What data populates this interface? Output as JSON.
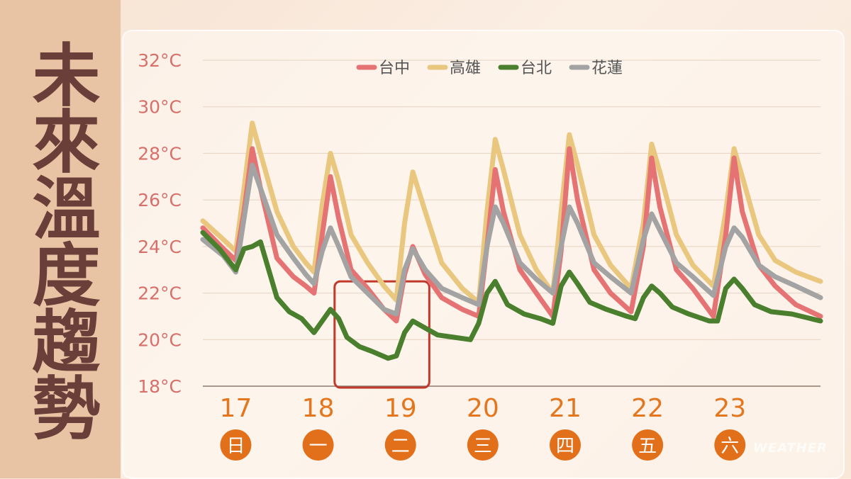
{
  "title": "未來溫度趨勢",
  "watermark": "WEATHER",
  "chart_data": {
    "type": "line",
    "title": "未來溫度趨勢",
    "ylim": [
      18,
      32
    ],
    "y_ticks": [
      "32°C",
      "30°C",
      "28°C",
      "26°C",
      "24°C",
      "22°C",
      "20°C",
      "18°C"
    ],
    "x_range": [
      16.6,
      24.1
    ],
    "x_unit": "day of month",
    "day_ticks": [
      {
        "day": "17",
        "weekday": "日"
      },
      {
        "day": "18",
        "weekday": "一"
      },
      {
        "day": "19",
        "weekday": "二"
      },
      {
        "day": "20",
        "weekday": "三"
      },
      {
        "day": "21",
        "weekday": "四"
      },
      {
        "day": "22",
        "weekday": "五"
      },
      {
        "day": "23",
        "weekday": "六"
      }
    ],
    "legend_position": "top",
    "highlight_box": {
      "x_from": 18.2,
      "x_to": 19.35,
      "y_from": 18,
      "y_to": 22.5,
      "color": "#c0392b"
    },
    "series": [
      {
        "name": "台中",
        "color": "#e57373",
        "points": [
          [
            16.6,
            24.8
          ],
          [
            16.85,
            23.9
          ],
          [
            17.0,
            23.4
          ],
          [
            17.1,
            25.5
          ],
          [
            17.2,
            28.2
          ],
          [
            17.3,
            26.5
          ],
          [
            17.5,
            23.5
          ],
          [
            17.7,
            22.7
          ],
          [
            17.85,
            22.3
          ],
          [
            17.95,
            22.0
          ],
          [
            18.05,
            24.5
          ],
          [
            18.15,
            27.0
          ],
          [
            18.25,
            25.2
          ],
          [
            18.4,
            23.0
          ],
          [
            18.6,
            22.2
          ],
          [
            18.8,
            21.3
          ],
          [
            18.95,
            20.8
          ],
          [
            19.05,
            22.8
          ],
          [
            19.15,
            24.0
          ],
          [
            19.3,
            22.8
          ],
          [
            19.5,
            21.8
          ],
          [
            19.75,
            21.3
          ],
          [
            19.95,
            21.0
          ],
          [
            20.05,
            24.0
          ],
          [
            20.15,
            27.3
          ],
          [
            20.25,
            25.5
          ],
          [
            20.45,
            23.0
          ],
          [
            20.65,
            22.0
          ],
          [
            20.85,
            21.0
          ],
          [
            20.95,
            23.8
          ],
          [
            21.05,
            28.2
          ],
          [
            21.15,
            26.0
          ],
          [
            21.35,
            23.0
          ],
          [
            21.55,
            22.0
          ],
          [
            21.8,
            21.2
          ],
          [
            21.95,
            24.0
          ],
          [
            22.05,
            27.8
          ],
          [
            22.15,
            25.7
          ],
          [
            22.35,
            23.0
          ],
          [
            22.55,
            22.2
          ],
          [
            22.8,
            21.0
          ],
          [
            22.95,
            24.5
          ],
          [
            23.05,
            27.8
          ],
          [
            23.15,
            25.5
          ],
          [
            23.35,
            23.2
          ],
          [
            23.55,
            22.3
          ],
          [
            23.8,
            21.5
          ],
          [
            24.1,
            21.0
          ]
        ]
      },
      {
        "name": "高雄",
        "color": "#e9c77e",
        "points": [
          [
            16.6,
            25.1
          ],
          [
            16.85,
            24.3
          ],
          [
            17.0,
            23.8
          ],
          [
            17.1,
            26.5
          ],
          [
            17.2,
            29.3
          ],
          [
            17.3,
            28.0
          ],
          [
            17.5,
            25.5
          ],
          [
            17.7,
            24.0
          ],
          [
            17.85,
            23.3
          ],
          [
            17.95,
            22.9
          ],
          [
            18.05,
            25.8
          ],
          [
            18.15,
            28.0
          ],
          [
            18.25,
            26.8
          ],
          [
            18.4,
            24.5
          ],
          [
            18.6,
            23.3
          ],
          [
            18.8,
            22.3
          ],
          [
            18.95,
            21.7
          ],
          [
            19.05,
            25.0
          ],
          [
            19.15,
            27.2
          ],
          [
            19.3,
            25.5
          ],
          [
            19.5,
            23.3
          ],
          [
            19.75,
            22.2
          ],
          [
            19.95,
            21.6
          ],
          [
            20.05,
            25.5
          ],
          [
            20.15,
            28.6
          ],
          [
            20.25,
            27.3
          ],
          [
            20.45,
            24.5
          ],
          [
            20.65,
            23.0
          ],
          [
            20.85,
            22.0
          ],
          [
            20.95,
            25.5
          ],
          [
            21.05,
            28.8
          ],
          [
            21.15,
            27.5
          ],
          [
            21.35,
            24.5
          ],
          [
            21.55,
            23.2
          ],
          [
            21.8,
            22.2
          ],
          [
            21.95,
            25.0
          ],
          [
            22.05,
            28.4
          ],
          [
            22.15,
            27.2
          ],
          [
            22.35,
            24.5
          ],
          [
            22.55,
            23.2
          ],
          [
            22.8,
            22.3
          ],
          [
            22.95,
            25.5
          ],
          [
            23.05,
            28.2
          ],
          [
            23.15,
            27.0
          ],
          [
            23.35,
            24.5
          ],
          [
            23.55,
            23.4
          ],
          [
            23.8,
            22.9
          ],
          [
            24.1,
            22.5
          ]
        ]
      },
      {
        "name": "台北",
        "color": "#4a7f2d",
        "points": [
          [
            16.6,
            24.6
          ],
          [
            16.8,
            23.9
          ],
          [
            17.0,
            23.0
          ],
          [
            17.1,
            23.9
          ],
          [
            17.2,
            24.0
          ],
          [
            17.3,
            24.2
          ],
          [
            17.4,
            23.0
          ],
          [
            17.5,
            21.8
          ],
          [
            17.65,
            21.2
          ],
          [
            17.8,
            20.9
          ],
          [
            17.95,
            20.3
          ],
          [
            18.05,
            20.8
          ],
          [
            18.15,
            21.3
          ],
          [
            18.25,
            20.9
          ],
          [
            18.35,
            20.1
          ],
          [
            18.5,
            19.7
          ],
          [
            18.65,
            19.5
          ],
          [
            18.85,
            19.2
          ],
          [
            18.95,
            19.3
          ],
          [
            19.05,
            20.3
          ],
          [
            19.15,
            20.8
          ],
          [
            19.3,
            20.5
          ],
          [
            19.45,
            20.2
          ],
          [
            19.65,
            20.1
          ],
          [
            19.85,
            20.0
          ],
          [
            19.95,
            20.7
          ],
          [
            20.05,
            22.0
          ],
          [
            20.15,
            22.5
          ],
          [
            20.3,
            21.5
          ],
          [
            20.5,
            21.1
          ],
          [
            20.7,
            20.9
          ],
          [
            20.85,
            20.7
          ],
          [
            20.95,
            22.3
          ],
          [
            21.05,
            22.9
          ],
          [
            21.15,
            22.4
          ],
          [
            21.3,
            21.6
          ],
          [
            21.5,
            21.3
          ],
          [
            21.75,
            21.0
          ],
          [
            21.85,
            20.9
          ],
          [
            21.95,
            21.8
          ],
          [
            22.05,
            22.3
          ],
          [
            22.15,
            22.0
          ],
          [
            22.3,
            21.4
          ],
          [
            22.5,
            21.1
          ],
          [
            22.75,
            20.8
          ],
          [
            22.85,
            20.8
          ],
          [
            22.95,
            22.2
          ],
          [
            23.05,
            22.6
          ],
          [
            23.15,
            22.2
          ],
          [
            23.3,
            21.5
          ],
          [
            23.5,
            21.2
          ],
          [
            23.75,
            21.1
          ],
          [
            24.1,
            20.8
          ]
        ]
      },
      {
        "name": "花蓮",
        "color": "#a3a3a3",
        "points": [
          [
            16.6,
            24.3
          ],
          [
            16.85,
            23.6
          ],
          [
            17.0,
            22.9
          ],
          [
            17.1,
            25.2
          ],
          [
            17.2,
            27.5
          ],
          [
            17.3,
            26.5
          ],
          [
            17.5,
            24.5
          ],
          [
            17.7,
            23.5
          ],
          [
            17.85,
            22.8
          ],
          [
            17.95,
            22.4
          ],
          [
            18.05,
            23.8
          ],
          [
            18.15,
            24.8
          ],
          [
            18.25,
            24.0
          ],
          [
            18.4,
            22.7
          ],
          [
            18.6,
            22.0
          ],
          [
            18.8,
            21.3
          ],
          [
            18.95,
            21.1
          ],
          [
            19.05,
            23.0
          ],
          [
            19.15,
            23.9
          ],
          [
            19.3,
            23.0
          ],
          [
            19.5,
            22.2
          ],
          [
            19.75,
            21.8
          ],
          [
            19.95,
            21.5
          ],
          [
            20.05,
            24.0
          ],
          [
            20.15,
            25.7
          ],
          [
            20.25,
            25.0
          ],
          [
            20.45,
            23.3
          ],
          [
            20.65,
            22.6
          ],
          [
            20.85,
            22.0
          ],
          [
            20.95,
            24.0
          ],
          [
            21.05,
            25.7
          ],
          [
            21.15,
            25.0
          ],
          [
            21.35,
            23.3
          ],
          [
            21.55,
            22.7
          ],
          [
            21.8,
            22.0
          ],
          [
            21.95,
            24.3
          ],
          [
            22.05,
            25.4
          ],
          [
            22.15,
            24.7
          ],
          [
            22.35,
            23.3
          ],
          [
            22.55,
            22.7
          ],
          [
            22.8,
            21.9
          ],
          [
            22.95,
            24.0
          ],
          [
            23.05,
            24.8
          ],
          [
            23.15,
            24.4
          ],
          [
            23.35,
            23.2
          ],
          [
            23.55,
            22.7
          ],
          [
            23.8,
            22.3
          ],
          [
            24.1,
            21.8
          ]
        ]
      }
    ]
  }
}
